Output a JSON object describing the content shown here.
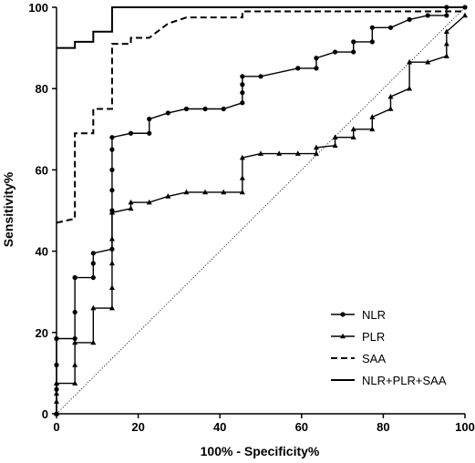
{
  "chart_data": {
    "type": "line",
    "title": "",
    "xlabel": "100% - Specificity%",
    "ylabel": "Sensitivity%",
    "xlim": [
      0,
      100
    ],
    "ylim": [
      0,
      100
    ],
    "xticks": [
      0,
      20,
      40,
      60,
      80,
      100
    ],
    "yticks": [
      0,
      20,
      40,
      60,
      80,
      100
    ],
    "grid": false,
    "legend_position": "bottom-right",
    "reference_line": {
      "x": [
        0,
        100
      ],
      "y": [
        0,
        100
      ],
      "style": "dotted"
    },
    "series": [
      {
        "name": "NLR",
        "style": "solid",
        "marker": "circle",
        "x": [
          0,
          0,
          0,
          0,
          0,
          4.5,
          4.5,
          4.5,
          4.5,
          9,
          9,
          9,
          13.6,
          13.6,
          13.6,
          13.6,
          13.6,
          13.6,
          18.2,
          22.7,
          22.7,
          27.3,
          31.8,
          36.4,
          40.9,
          45.5,
          45.5,
          45.5,
          45.5,
          50,
          59.1,
          63.6,
          63.6,
          68.2,
          72.7,
          72.7,
          77.3,
          77.3,
          81.8,
          86.4,
          90.9,
          95.5,
          95.5,
          100
        ],
        "y": [
          0,
          6,
          12,
          18.5,
          18.5,
          18.5,
          25,
          33.5,
          33.5,
          33.5,
          37,
          39.5,
          40.5,
          50,
          55,
          60,
          65,
          68,
          69,
          69,
          72.5,
          74,
          75,
          75,
          75,
          76.5,
          79,
          81,
          83,
          83,
          85,
          85,
          87.5,
          89,
          89,
          91.5,
          91.5,
          95,
          95,
          97,
          98,
          98,
          100,
          100
        ]
      },
      {
        "name": "PLR",
        "style": "solid",
        "marker": "triangle",
        "x": [
          0,
          0,
          0,
          0,
          0,
          4.5,
          4.5,
          4.5,
          9,
          9,
          13.6,
          13.6,
          13.6,
          13.6,
          13.6,
          13.6,
          13.6,
          18.2,
          18.2,
          22.7,
          27.3,
          31.8,
          36.4,
          40.9,
          45.5,
          45.5,
          45.5,
          50,
          54.5,
          59.1,
          63.6,
          63.6,
          68.2,
          68.2,
          72.7,
          72.7,
          77.3,
          77.3,
          81.8,
          81.8,
          86.4,
          86.4,
          90.9,
          95.5,
          95.5,
          95.5,
          100
        ],
        "y": [
          0,
          3,
          5,
          7.5,
          7.5,
          7.5,
          12,
          17.5,
          17.5,
          26,
          26,
          31,
          37,
          43,
          49.5,
          49.5,
          49.5,
          50.5,
          52,
          52,
          53.5,
          54.5,
          54.5,
          54.5,
          54.5,
          58,
          63,
          64,
          64,
          64,
          64,
          65.5,
          66,
          68,
          68,
          70,
          70,
          73,
          75,
          78,
          80,
          86.5,
          86.5,
          88,
          91,
          94,
          98
        ]
      },
      {
        "name": "SAA",
        "style": "dashed",
        "marker": "none",
        "x": [
          0,
          4.5,
          4.5,
          9,
          9,
          13.6,
          13.6,
          18.2,
          18.2,
          22.7,
          27.3,
          27.3,
          31.8,
          31.8,
          45.5,
          45.5,
          100
        ],
        "y": [
          47,
          48,
          69,
          69,
          75,
          75,
          91,
          91,
          92.5,
          92.5,
          96,
          96,
          97.5,
          97.5,
          97.5,
          99,
          99
        ]
      },
      {
        "name": "NLR+PLR+SAA",
        "style": "solid",
        "marker": "none",
        "x": [
          0,
          4.5,
          4.5,
          9,
          9,
          13.6,
          13.6,
          100
        ],
        "y": [
          90,
          90,
          91.5,
          91.5,
          94,
          94,
          100,
          100
        ]
      }
    ]
  }
}
